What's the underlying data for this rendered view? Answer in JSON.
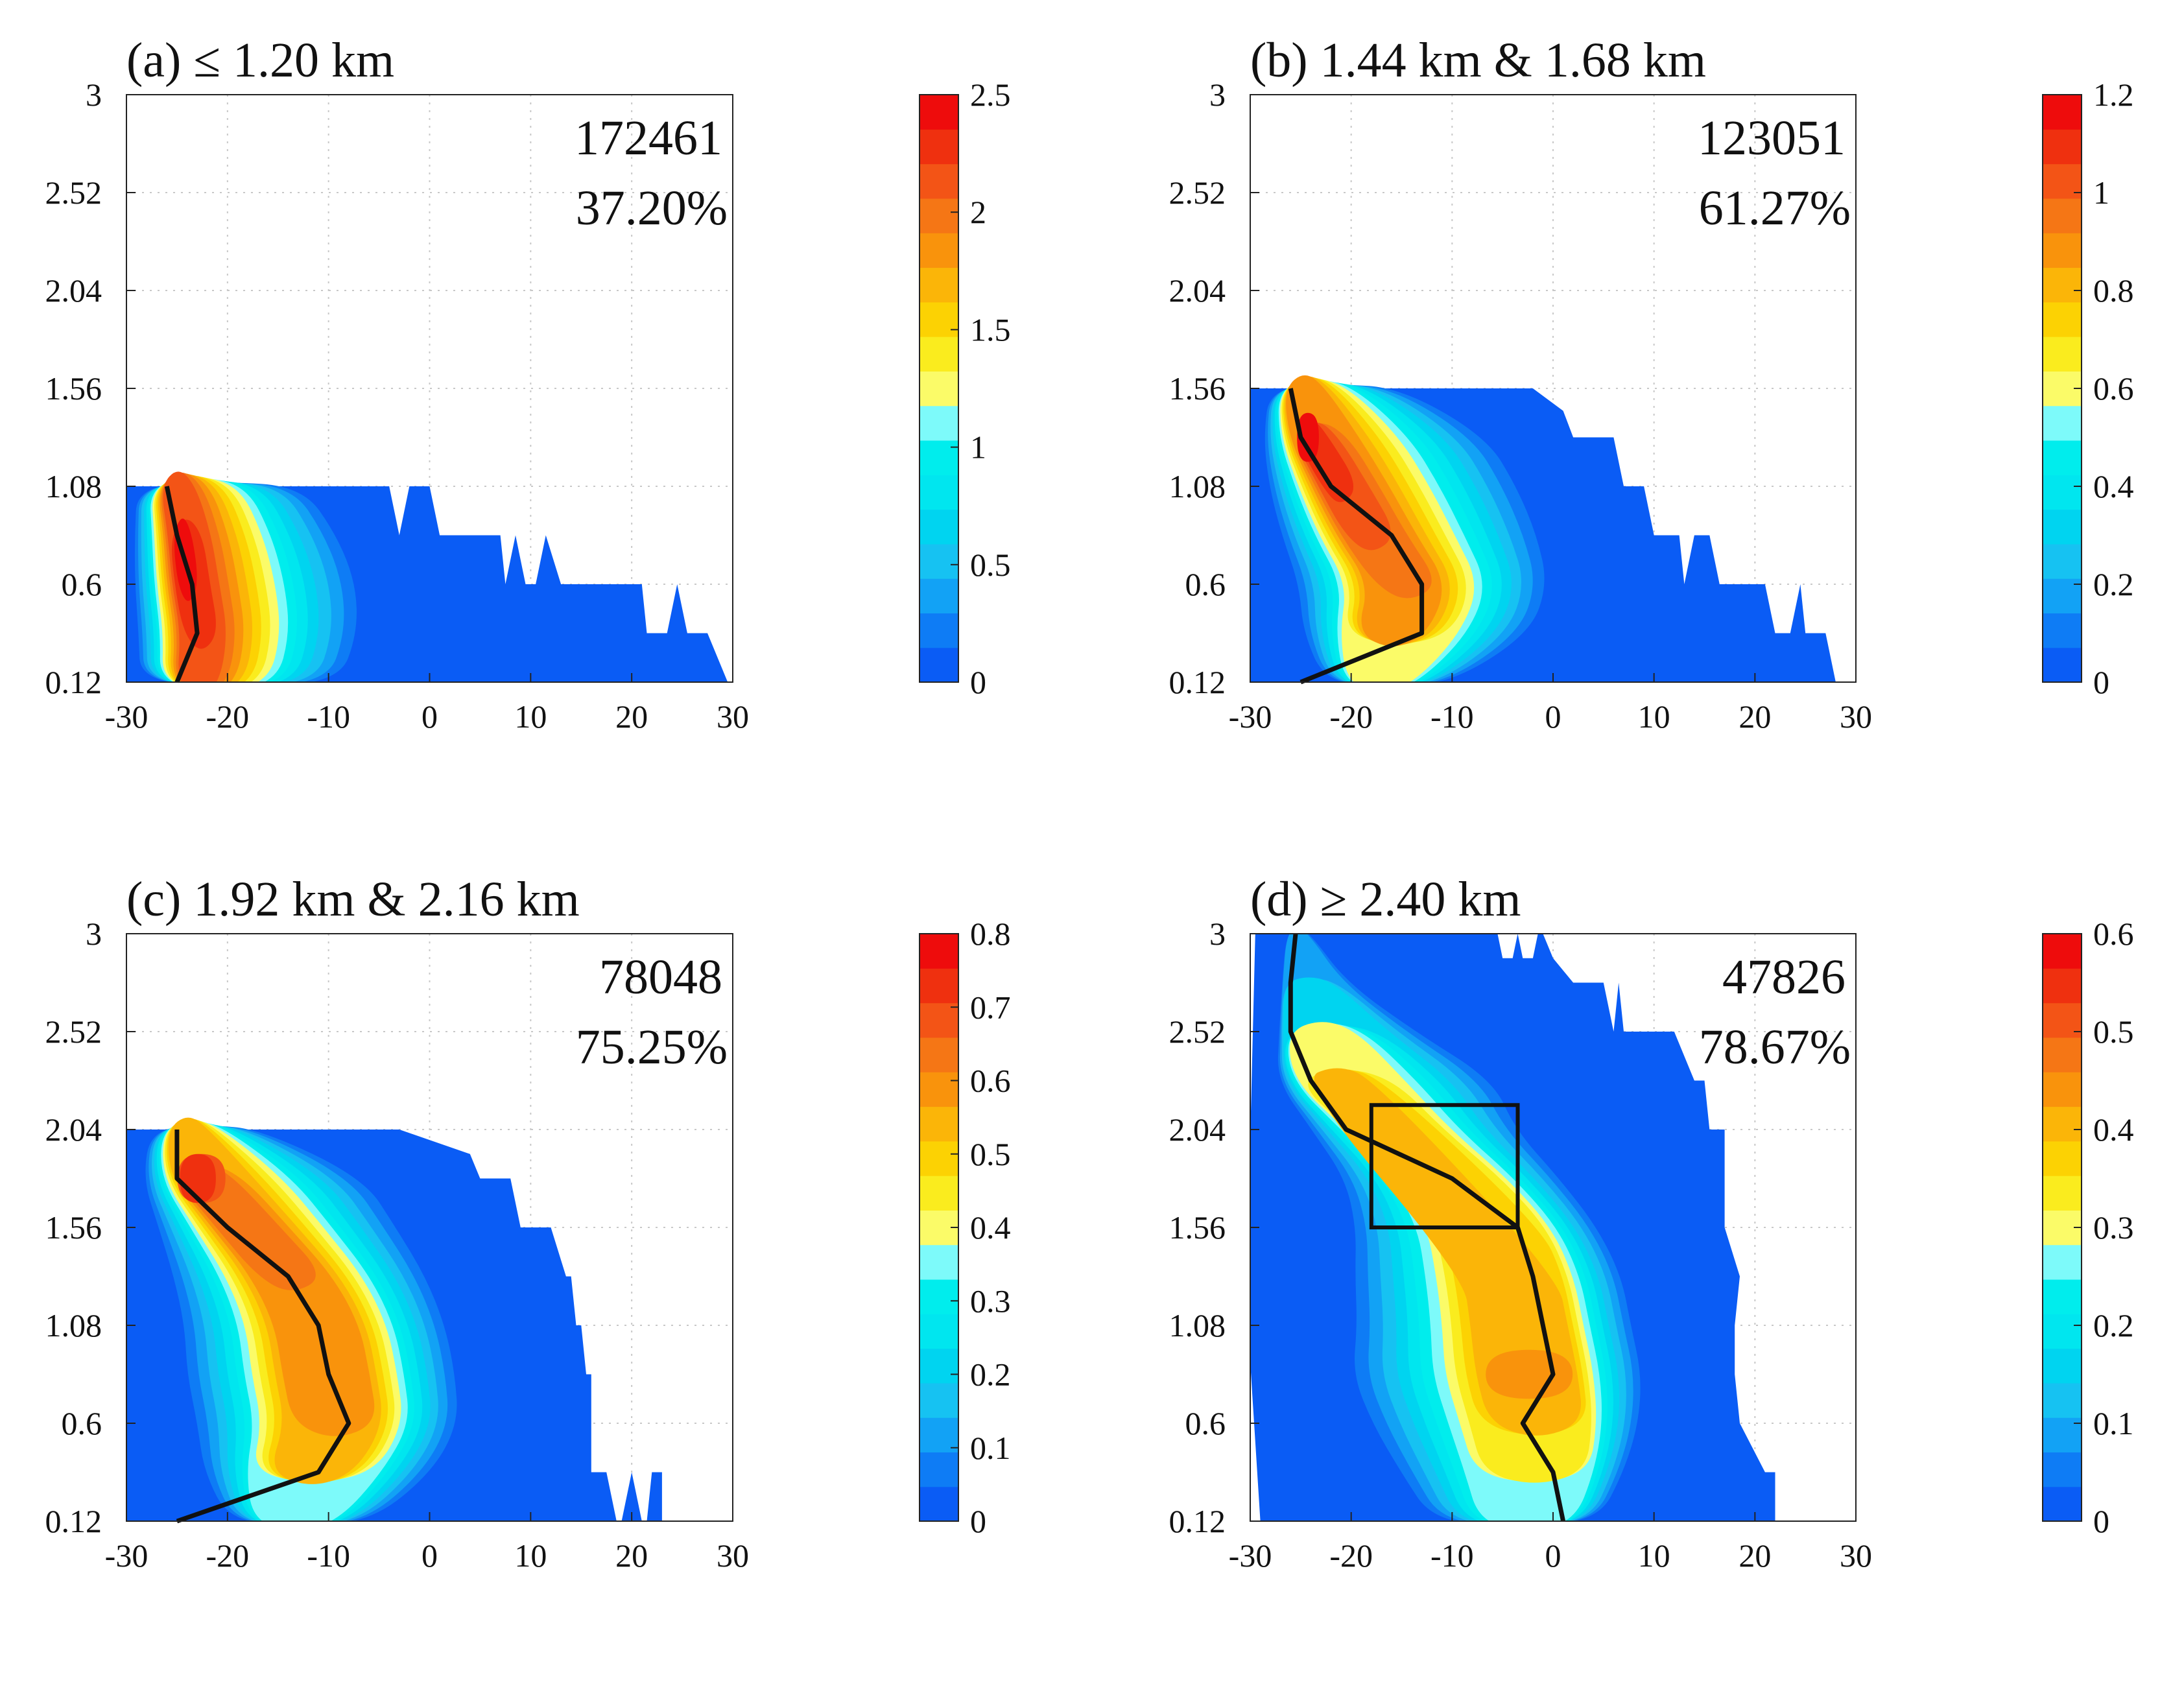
{
  "figure": {
    "description_none": ""
  },
  "colors": {
    "levels": [
      "#0a5cf5",
      "#0e7cf5",
      "#12a2f5",
      "#16c2f2",
      "#00d4f0",
      "#00e6ef",
      "#00eded",
      "#7dfafa",
      "#fbfb68",
      "#faec1e",
      "#fcd203",
      "#fbb508",
      "#f9930c",
      "#f57615",
      "#f35416",
      "#ef300f",
      "#ee0c0c"
    ],
    "line": "#111111",
    "grid": "#c8c8c8"
  },
  "chart_data": [
    {
      "type": "contour",
      "panel": "a",
      "title": "(a) ≤ 1.20 km",
      "count_label": "172461",
      "percent_label": "37.20%",
      "xlim": [
        -30,
        30
      ],
      "ylim": [
        0.12,
        3
      ],
      "x_ticks": [
        -30,
        -20,
        -10,
        0,
        10,
        20,
        30
      ],
      "x_tick_labels": [
        "-30",
        "-20",
        "-10",
        "0",
        "10",
        "20",
        "30"
      ],
      "y_ticks": [
        0.12,
        0.6,
        1.08,
        1.56,
        2.04,
        2.52,
        3
      ],
      "y_tick_labels": [
        "0.12",
        "0.6",
        "1.08",
        "1.56",
        "2.04",
        "2.52",
        "3"
      ],
      "colorbar": {
        "min": 0,
        "max": 2.5,
        "ticks": [
          0,
          0.5,
          1,
          1.5,
          2,
          2.5
        ],
        "tick_labels": [
          "0",
          "0.5",
          "1",
          "1.5",
          "2",
          "2.5"
        ]
      },
      "blob": {
        "rows": [
          {
            "y": 0.12,
            "lead": -29.5,
            "edge": -6,
            "center": -24,
            "peak": 0.9,
            "kx": -25,
            "ky": 0.12
          },
          {
            "y": 0.36,
            "lead": -29.5,
            "edge": -5,
            "center": -23.5,
            "peak": 0.95,
            "kx": -23,
            "ky": 0.36
          },
          {
            "y": 0.6,
            "lead": -29.5,
            "edge": -6,
            "center": -24.5,
            "peak": 1.0,
            "kx": -23.5,
            "ky": 0.6
          },
          {
            "y": 0.84,
            "lead": -29.5,
            "edge": -8,
            "center": -25,
            "peak": 1.0,
            "kx": -25,
            "ky": 0.84
          },
          {
            "y": 1.08,
            "lead": -29.5,
            "edge": -10,
            "center": -26,
            "peak": 0.9,
            "kx": -26,
            "ky": 1.08
          }
        ],
        "width_scale": 1.0,
        "ratios": [
          1.0,
          0.93,
          0.86,
          0.79,
          0.72,
          0.66,
          0.6,
          0.55,
          0.5,
          0.45,
          0.4,
          0.35,
          0.3,
          0.25,
          0.2,
          0.15,
          0.09
        ]
      },
      "base_region": [
        [
          -30,
          0.12
        ],
        [
          29.5,
          0.12
        ],
        [
          27.5,
          0.36
        ],
        [
          25.5,
          0.36
        ],
        [
          24.5,
          0.6
        ],
        [
          23.5,
          0.36
        ],
        [
          21.5,
          0.36
        ],
        [
          21,
          0.6
        ],
        [
          13,
          0.6
        ],
        [
          11.5,
          0.84
        ],
        [
          10.5,
          0.6
        ],
        [
          9.5,
          0.6
        ],
        [
          8.5,
          0.84
        ],
        [
          7.5,
          0.6
        ],
        [
          7,
          0.84
        ],
        [
          1,
          0.84
        ],
        [
          0,
          1.08
        ],
        [
          -2,
          1.08
        ],
        [
          -3,
          0.84
        ],
        [
          -4,
          1.08
        ],
        [
          -30,
          1.08
        ]
      ],
      "mean_line": {
        "x": [
          -25,
          -23,
          -23.5,
          -25,
          -26
        ],
        "y": [
          0.12,
          0.36,
          0.6,
          0.84,
          1.08
        ]
      }
    },
    {
      "type": "contour",
      "panel": "b",
      "title": "(b) 1.44 km & 1.68 km",
      "count_label": "123051",
      "percent_label": "61.27%",
      "xlim": [
        -30,
        30
      ],
      "ylim": [
        0.12,
        3
      ],
      "x_ticks": [
        -30,
        -20,
        -10,
        0,
        10,
        20,
        30
      ],
      "x_tick_labels": [
        "-30",
        "-20",
        "-10",
        "0",
        "10",
        "20",
        "30"
      ],
      "y_ticks": [
        0.12,
        0.6,
        1.08,
        1.56,
        2.04,
        2.52,
        3
      ],
      "y_tick_labels": [
        "0.12",
        "0.6",
        "1.08",
        "1.56",
        "2.04",
        "2.52",
        "3"
      ],
      "colorbar": {
        "min": 0,
        "max": 1.2,
        "ticks": [
          0,
          0.2,
          0.4,
          0.6,
          0.8,
          1,
          1.2
        ],
        "tick_labels": [
          "0",
          "0.2",
          "0.4",
          "0.6",
          "0.8",
          "1",
          "1.2"
        ]
      },
      "blob": {
        "rows": [
          {
            "y": 0.12,
            "lead": -27,
            "edge": -2,
            "center": -18,
            "peak": 0.55,
            "kx": -25,
            "ky": 0.12
          },
          {
            "y": 0.36,
            "lead": -27.5,
            "edge": 3,
            "center": -17,
            "peak": 0.8,
            "kx": -13,
            "ky": 0.36
          },
          {
            "y": 0.6,
            "lead": -28,
            "edge": 3.5,
            "center": -15,
            "peak": 0.85,
            "kx": -13,
            "ky": 0.6
          },
          {
            "y": 0.84,
            "lead": -28.5,
            "edge": 2,
            "center": -19,
            "peak": 0.9,
            "kx": -16,
            "ky": 0.84
          },
          {
            "y": 1.08,
            "lead": -29,
            "edge": -1,
            "center": -22,
            "peak": 0.95,
            "kx": -22,
            "ky": 1.08
          },
          {
            "y": 1.32,
            "lead": -29,
            "edge": -5,
            "center": -25,
            "peak": 1.0,
            "kx": -25,
            "ky": 1.32
          },
          {
            "y": 1.56,
            "lead": -29,
            "edge": -10,
            "center": -26,
            "peak": 0.75,
            "kx": -26,
            "ky": 1.56
          }
        ],
        "width_scale": 1.0,
        "ratios": [
          1.0,
          0.92,
          0.85,
          0.78,
          0.72,
          0.66,
          0.6,
          0.54,
          0.49,
          0.44,
          0.39,
          0.34,
          0.29,
          0.24,
          0.19,
          0.14,
          0.09
        ]
      },
      "base_region": [
        [
          -30,
          0.12
        ],
        [
          28,
          0.12
        ],
        [
          27,
          0.36
        ],
        [
          25,
          0.36
        ],
        [
          24.5,
          0.6
        ],
        [
          23.5,
          0.36
        ],
        [
          22,
          0.36
        ],
        [
          21,
          0.6
        ],
        [
          16.5,
          0.6
        ],
        [
          15.5,
          0.84
        ],
        [
          14,
          0.84
        ],
        [
          13,
          0.6
        ],
        [
          12.5,
          0.84
        ],
        [
          10,
          0.84
        ],
        [
          9,
          1.08
        ],
        [
          7,
          1.08
        ],
        [
          6,
          1.32
        ],
        [
          2,
          1.32
        ],
        [
          1,
          1.45
        ],
        [
          -2,
          1.56
        ],
        [
          -30,
          1.56
        ]
      ],
      "mean_line": {
        "x": [
          -25,
          -13,
          -13,
          -16,
          -22,
          -25,
          -26
        ],
        "y": [
          0.12,
          0.36,
          0.6,
          0.84,
          1.08,
          1.32,
          1.56
        ]
      }
    },
    {
      "type": "contour",
      "panel": "c",
      "title": "(c) 1.92 km & 2.16 km",
      "count_label": "78048",
      "percent_label": "75.25%",
      "xlim": [
        -30,
        30
      ],
      "ylim": [
        0.12,
        3
      ],
      "x_ticks": [
        -30,
        -20,
        -10,
        0,
        10,
        20,
        30
      ],
      "x_tick_labels": [
        "-30",
        "-20",
        "-10",
        "0",
        "10",
        "20",
        "30"
      ],
      "y_ticks": [
        0.12,
        0.6,
        1.08,
        1.56,
        2.04,
        2.52,
        3
      ],
      "y_tick_labels": [
        "0.12",
        "0.6",
        "1.08",
        "1.56",
        "2.04",
        "2.52",
        "3"
      ],
      "colorbar": {
        "min": 0,
        "max": 0.8,
        "ticks": [
          0,
          0.1,
          0.2,
          0.3,
          0.4,
          0.5,
          0.6,
          0.7,
          0.8
        ],
        "tick_labels": [
          "0",
          "0.1",
          "0.2",
          "0.3",
          "0.4",
          "0.5",
          "0.6",
          "0.7",
          "0.8"
        ]
      },
      "blob": {
        "rows": [
          {
            "y": 0.12,
            "lead": -28,
            "edge": 6,
            "center": -14,
            "peak": 0.45,
            "kx": -25,
            "ky": 0.12
          },
          {
            "y": 0.36,
            "lead": -28,
            "edge": 7,
            "center": -12,
            "peak": 0.7,
            "kx": -11,
            "ky": 0.36
          },
          {
            "y": 0.6,
            "lead": -28.5,
            "edge": 7.5,
            "center": -9,
            "peak": 0.78,
            "kx": -8,
            "ky": 0.6
          },
          {
            "y": 0.84,
            "lead": -29,
            "edge": 7,
            "center": -10,
            "peak": 0.8,
            "kx": -9.5,
            "ky": 0.84
          },
          {
            "y": 1.08,
            "lead": -29,
            "edge": 6,
            "center": -11,
            "peak": 0.8,
            "kx": -10.5,
            "ky": 1.08
          },
          {
            "y": 1.32,
            "lead": -29,
            "edge": 4,
            "center": -14,
            "peak": 0.82,
            "kx": -13.5,
            "ky": 1.32
          },
          {
            "y": 1.56,
            "lead": -29,
            "edge": 1,
            "center": -19,
            "peak": 0.85,
            "kx": -19.5,
            "ky": 1.56
          },
          {
            "y": 1.8,
            "lead": -29,
            "edge": -4,
            "center": -24,
            "peak": 0.95,
            "kx": -25,
            "ky": 1.8
          },
          {
            "y": 2.04,
            "lead": -29,
            "edge": -12,
            "center": -25,
            "peak": 0.7,
            "kx": -25,
            "ky": 2.04
          }
        ],
        "width_scale": 1.0,
        "ratios": [
          1.0,
          0.92,
          0.85,
          0.78,
          0.72,
          0.66,
          0.6,
          0.55,
          0.5,
          0.45,
          0.4,
          0.35,
          0.3,
          0.25,
          0.2,
          0.15,
          0.09
        ]
      },
      "base_region": [
        [
          -30,
          0.12
        ],
        [
          23,
          0.12
        ],
        [
          23,
          0.36
        ],
        [
          22,
          0.36
        ],
        [
          21.5,
          0.12
        ],
        [
          21,
          0.12
        ],
        [
          20,
          0.36
        ],
        [
          19,
          0.12
        ],
        [
          18.5,
          0.12
        ],
        [
          17.5,
          0.36
        ],
        [
          16,
          0.36
        ],
        [
          16,
          0.84
        ],
        [
          15.5,
          0.84
        ],
        [
          15,
          1.08
        ],
        [
          14.5,
          1.08
        ],
        [
          14,
          1.32
        ],
        [
          13.5,
          1.32
        ],
        [
          12,
          1.56
        ],
        [
          9,
          1.56
        ],
        [
          8,
          1.8
        ],
        [
          5,
          1.8
        ],
        [
          4,
          1.92
        ],
        [
          -3,
          2.04
        ],
        [
          -30,
          2.04
        ]
      ],
      "mean_line": {
        "x": [
          -25,
          -11,
          -8,
          -10,
          -11,
          -14,
          -20,
          -25,
          -25
        ],
        "y": [
          0.12,
          0.36,
          0.6,
          0.84,
          1.08,
          1.32,
          1.56,
          1.8,
          2.04
        ]
      }
    },
    {
      "type": "contour",
      "panel": "d",
      "title": "(d) ≥ 2.40 km",
      "count_label": "47826",
      "percent_label": "78.67%",
      "xlim": [
        -30,
        30
      ],
      "ylim": [
        0.12,
        3
      ],
      "x_ticks": [
        -30,
        -20,
        -10,
        0,
        10,
        20,
        30
      ],
      "x_tick_labels": [
        "-30",
        "-20",
        "-10",
        "0",
        "10",
        "20",
        "30"
      ],
      "y_ticks": [
        0.12,
        0.6,
        1.08,
        1.56,
        2.04,
        2.52,
        3
      ],
      "y_tick_labels": [
        "0.12",
        "0.6",
        "1.08",
        "1.56",
        "2.04",
        "2.52",
        "3"
      ],
      "colorbar": {
        "min": 0,
        "max": 0.6,
        "ticks": [
          0,
          0.1,
          0.2,
          0.3,
          0.4,
          0.5,
          0.6
        ],
        "tick_labels": [
          "0",
          "0.1",
          "0.2",
          "0.3",
          "0.4",
          "0.5",
          "0.6"
        ]
      },
      "blob": {
        "rows": [
          {
            "y": 0.12,
            "lead": -27,
            "edge": 12,
            "center": -1,
            "peak": 0.45,
            "kx": 1,
            "ky": 0.12
          },
          {
            "y": 0.36,
            "lead": -27,
            "edge": 12.5,
            "center": 0,
            "peak": 0.6,
            "kx": 0,
            "ky": 0.36
          },
          {
            "y": 0.6,
            "lead": -27.5,
            "edge": 13,
            "center": 0,
            "peak": 0.7,
            "kx": -3,
            "ky": 0.6
          },
          {
            "y": 0.84,
            "lead": -28,
            "edge": 13,
            "center": -1,
            "peak": 0.75,
            "kx": 0,
            "ky": 0.84
          },
          {
            "y": 1.08,
            "lead": -28,
            "edge": 12.5,
            "center": -2,
            "peak": 0.72,
            "kx": -1,
            "ky": 1.08
          },
          {
            "y": 1.32,
            "lead": -28.5,
            "edge": 12,
            "center": -3,
            "peak": 0.7,
            "kx": -2,
            "ky": 1.32
          },
          {
            "y": 1.56,
            "lead": -29,
            "edge": 10.5,
            "center": -5,
            "peak": 0.65,
            "kx": -3.5,
            "ky": 1.56
          },
          {
            "y": 1.8,
            "lead": -29,
            "edge": 9,
            "center": -10,
            "peak": 0.6,
            "kx": -10,
            "ky": 1.8
          },
          {
            "y": 2.04,
            "lead": -29,
            "edge": 6,
            "center": -17,
            "peak": 0.62,
            "kx": -20.5,
            "ky": 2.04
          },
          {
            "y": 2.28,
            "lead": -29,
            "edge": 3,
            "center": -24,
            "peak": 0.72,
            "kx": -24,
            "ky": 2.28
          },
          {
            "y": 2.52,
            "lead": -29,
            "edge": 0,
            "center": -25.5,
            "peak": 0.5,
            "kx": -26,
            "ky": 2.52
          },
          {
            "y": 2.76,
            "lead": -29,
            "edge": -6,
            "center": -26,
            "peak": 0.3,
            "kx": -26,
            "ky": 2.76
          },
          {
            "y": 3.0,
            "lead": -29,
            "edge": -12,
            "center": -26,
            "peak": 0.15,
            "kx": -25.5,
            "ky": 3.0
          }
        ],
        "width_scale": 1.0,
        "ratios": [
          1.0,
          0.93,
          0.86,
          0.79,
          0.72,
          0.66,
          0.6,
          0.54,
          0.48,
          0.43,
          0.38,
          0.33,
          0.28,
          0.23,
          0.18,
          0.13,
          0.08
        ]
      },
      "base_region": [
        [
          -29,
          0.12
        ],
        [
          22,
          0.12
        ],
        [
          22,
          0.36
        ],
        [
          21,
          0.36
        ],
        [
          18.5,
          0.6
        ],
        [
          18,
          0.84
        ],
        [
          18,
          1.08
        ],
        [
          18.5,
          1.32
        ],
        [
          17,
          1.56
        ],
        [
          17,
          2.04
        ],
        [
          15.5,
          2.04
        ],
        [
          15,
          2.28
        ],
        [
          14,
          2.28
        ],
        [
          12,
          2.52
        ],
        [
          7,
          2.52
        ],
        [
          6.5,
          2.76
        ],
        [
          6,
          2.52
        ],
        [
          5,
          2.76
        ],
        [
          2,
          2.76
        ],
        [
          0,
          2.88
        ],
        [
          -1,
          3.0
        ],
        [
          -1.5,
          3.0
        ],
        [
          -2,
          2.88
        ],
        [
          -3,
          2.88
        ],
        [
          -3.5,
          3.0
        ],
        [
          -4,
          2.88
        ],
        [
          -5,
          2.88
        ],
        [
          -5.5,
          3.0
        ],
        [
          -6,
          3.0
        ],
        [
          -29.5,
          3.0
        ],
        [
          -30,
          2.0
        ],
        [
          -30,
          0.9
        ],
        [
          -29,
          0.12
        ]
      ],
      "mean_line": {
        "x": [
          1,
          0,
          -3,
          0,
          -1,
          -2,
          -3.5,
          -10,
          -20.5,
          -24,
          -26,
          -26,
          -25.5
        ],
        "y": [
          0.12,
          0.36,
          0.6,
          0.84,
          1.08,
          1.32,
          1.56,
          1.8,
          2.04,
          2.28,
          2.52,
          2.76,
          3.0
        ]
      },
      "box": {
        "x": [
          -18,
          -3.5
        ],
        "y": [
          1.56,
          2.16
        ]
      }
    }
  ]
}
